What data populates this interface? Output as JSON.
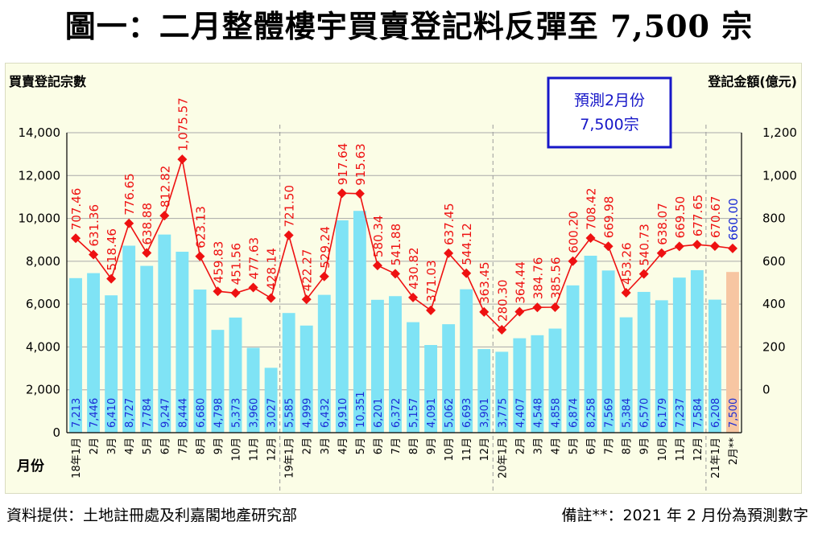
{
  "title": "圖一：二月整體樓宇買賣登記料反彈至 7,500 宗",
  "footer": {
    "source": "資料提供：土地註冊處及利嘉閣地產研究部",
    "note": "備註**：2021 年 2 月份為預測數字"
  },
  "colors": {
    "bar": "#7fe3f5",
    "bar_forecast": "#f7c6a2",
    "line": "#ee1111",
    "bar_label": "#1b2bd6",
    "callout_border": "#1717c8",
    "callout_text": "#1717c8",
    "grid": "#a9a9a9",
    "divider": "#9a9a9a"
  },
  "chart_data": {
    "type": "bar+line",
    "title": "圖一：二月整體樓宇買賣登記料反彈至 7,500 宗",
    "ylabel_left": "買賣登記宗數",
    "ylabel_right": "登記金額(億元)",
    "xlabel": "月份",
    "ylim_left": [
      0,
      14000
    ],
    "yticks_left": [
      "0",
      "2,000",
      "4,000",
      "6,000",
      "8,000",
      "10,000",
      "12,000",
      "14,000"
    ],
    "ylim_right": [
      -200,
      1200
    ],
    "yticks_right": [
      "0",
      "200",
      "400",
      "600",
      "800",
      "1,000",
      "1,200"
    ],
    "categories": [
      "18年1月",
      "2月",
      "3月",
      "4月",
      "5月",
      "6月",
      "7月",
      "8月",
      "9月",
      "10月",
      "11月",
      "12月",
      "19年1月",
      "2月",
      "3月",
      "4月",
      "5月",
      "6月",
      "7月",
      "8月",
      "9月",
      "10月",
      "11月",
      "12月",
      "20年1月",
      "2月",
      "3月",
      "4月",
      "5月",
      "6月",
      "7月",
      "8月",
      "9月",
      "10月",
      "11月",
      "12月",
      "21年1月",
      "2月**"
    ],
    "year_dividers_after_index": [
      11,
      23,
      35
    ],
    "series": [
      {
        "name": "買賣登記宗數",
        "kind": "bar",
        "values": [
          7213,
          7446,
          6410,
          8727,
          7784,
          9247,
          8444,
          6680,
          4798,
          5373,
          3960,
          3027,
          5585,
          4999,
          6432,
          9910,
          10351,
          6201,
          6372,
          5157,
          4091,
          5062,
          6693,
          3901,
          3775,
          4407,
          4548,
          4858,
          6874,
          8258,
          7569,
          5384,
          6570,
          6179,
          7237,
          7584,
          6208,
          7500
        ],
        "labels": [
          "7,213",
          "7,446",
          "6,410",
          "8,727",
          "7,784",
          "9,247",
          "8,444",
          "6,680",
          "4,798",
          "5,373",
          "3,960",
          "3,027",
          "5,585",
          "4,999",
          "6,432",
          "9,910",
          "10,351",
          "6,201",
          "6,372",
          "5,157",
          "4,091",
          "5,062",
          "6,693",
          "3,901",
          "3,775",
          "4,407",
          "4,548",
          "4,858",
          "6,874",
          "8,258",
          "7,569",
          "5,384",
          "6,570",
          "6,179",
          "7,237",
          "7,584",
          "6,208",
          "7,500"
        ],
        "forecast_index": 37
      },
      {
        "name": "登記金額(億元)",
        "kind": "line",
        "values": [
          707.46,
          631.36,
          518.46,
          776.65,
          638.88,
          812.82,
          1075.57,
          623.13,
          459.83,
          451.56,
          477.63,
          428.14,
          721.5,
          422.27,
          529.24,
          917.64,
          915.63,
          580.34,
          541.88,
          430.82,
          371.03,
          637.45,
          544.12,
          363.45,
          280.3,
          364.44,
          384.76,
          385.56,
          600.2,
          708.42,
          669.98,
          453.26,
          540.73,
          638.07,
          669.5,
          677.65,
          670.67,
          660.0
        ],
        "labels": [
          "707.46",
          "631.36",
          "518.46",
          "776.65",
          "638.88",
          "812.82",
          "1,075.57",
          "623.13",
          "459.83",
          "451.56",
          "477.63",
          "428.14",
          "721.50",
          "422.27",
          "529.24",
          "917.64",
          "915.63",
          "580.34",
          "541.88",
          "430.82",
          "371.03",
          "637.45",
          "544.12",
          "363.45",
          "280.30",
          "364.44",
          "384.76",
          "385.56",
          "600.20",
          "708.42",
          "669.98",
          "453.26",
          "540.73",
          "638.07",
          "669.50",
          "677.65",
          "670.67",
          "660.00"
        ]
      }
    ],
    "callout": {
      "line1": "預測2月份",
      "line2": "7,500宗"
    }
  }
}
